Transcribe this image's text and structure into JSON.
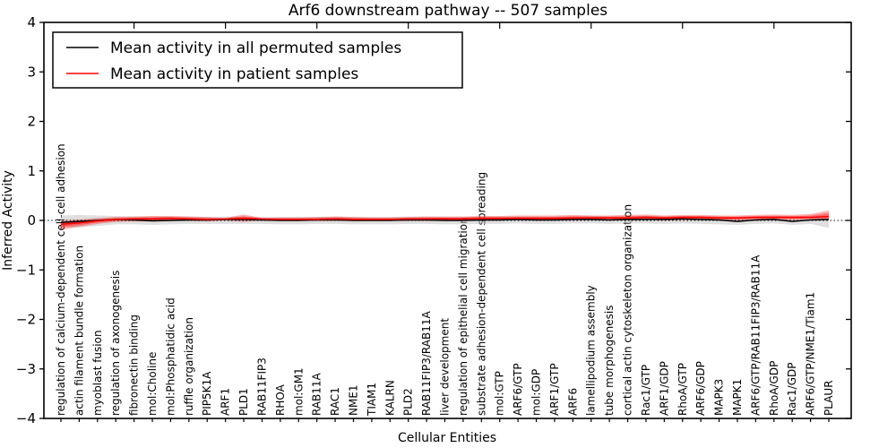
{
  "title": "Arf6 downstream pathway -- 507 samples",
  "axes": {
    "xlabel": "Cellular Entities",
    "ylabel": "Inferred Activity"
  },
  "legend": {
    "items": [
      {
        "label": "Mean activity in all permuted samples",
        "color": "#000000"
      },
      {
        "label": "Mean activity in patient samples",
        "color": "#ff0000"
      }
    ]
  },
  "colors": {
    "permuted_line": "#000000",
    "patient_line": "#ff0000",
    "permuted_band": "#bfbfbf",
    "patient_band": "#ff0000",
    "zero_line": "#000000",
    "spine": "#000000"
  },
  "chart_data": {
    "type": "line",
    "title": "Arf6 downstream pathway -- 507 samples",
    "xlabel": "Cellular Entities",
    "ylabel": "Inferred Activity",
    "ylim": [
      -4,
      4
    ],
    "yticks": [
      4,
      3,
      2,
      1,
      0,
      -1,
      -2,
      -3,
      -4
    ],
    "grid": false,
    "zero_line_style": "dotted",
    "legend_position": "upper left",
    "x_major_tick_indices": [
      4,
      9,
      14,
      19,
      24,
      29,
      34,
      39
    ],
    "categories": [
      "regulation of calcium-dependent cell-cell adhesion",
      "actin filament bundle formation",
      "myoblast fusion",
      "regulation of axonogenesis",
      "fibronectin binding",
      "mol:Choline",
      "mol:Phosphatidic acid",
      "ruffle organization",
      "PIP5K1A",
      "ARF1",
      "PLD1",
      "RAB11FIP3",
      "RHOA",
      "mol:GM1",
      "RAB11A",
      "RAC1",
      "NME1",
      "TIAM1",
      "KALRN",
      "PLD2",
      "RAB11FIP3/RAB11A",
      "liver development",
      "regulation of epithelial cell migration",
      "substrate adhesion-dependent cell spreading",
      "mol:GTP",
      "ARF6/GTP",
      "mol:GDP",
      "ARF1/GTP",
      "ARF6",
      "lamellipodium assembly",
      "tube morphogenesis",
      "cortical actin cytoskeleton organization",
      "Rac1/GTP",
      "ARF1/GDP",
      "RhoA/GTP",
      "ARF6/GDP",
      "MAPK3",
      "MAPK1",
      "ARF6/GTP/RAB11FIP3/RAB11A",
      "RhoA/GDP",
      "Rac1/GDP",
      "ARF6/GTP/NME1/Tiam1",
      "PLAUR"
    ],
    "series": [
      {
        "name": "Mean activity in all permuted samples",
        "color": "#000000",
        "band_color": "#bfbfbf",
        "values": [
          -0.04,
          -0.02,
          0.0,
          0.02,
          0.01,
          -0.01,
          0.0,
          0.01,
          0.01,
          0.02,
          0.02,
          0.01,
          0.0,
          0.0,
          0.01,
          0.01,
          0.0,
          0.0,
          0.0,
          0.01,
          0.01,
          0.0,
          0.0,
          0.01,
          0.01,
          0.02,
          0.01,
          0.01,
          0.02,
          0.02,
          0.01,
          0.02,
          0.02,
          0.02,
          0.03,
          0.02,
          0.01,
          -0.02,
          0.01,
          0.02,
          -0.02,
          0.01,
          0.02
        ],
        "band_upper": [
          0.1,
          0.11,
          0.1,
          0.09,
          0.08,
          0.08,
          0.08,
          0.08,
          0.07,
          0.08,
          0.08,
          0.07,
          0.07,
          0.07,
          0.07,
          0.08,
          0.07,
          0.07,
          0.07,
          0.08,
          0.08,
          0.07,
          0.07,
          0.08,
          0.08,
          0.08,
          0.08,
          0.08,
          0.08,
          0.09,
          0.08,
          0.08,
          0.09,
          0.08,
          0.09,
          0.08,
          0.08,
          0.07,
          0.08,
          0.08,
          0.07,
          0.08,
          0.07
        ],
        "band_lower": [
          -0.14,
          -0.14,
          -0.11,
          -0.08,
          -0.08,
          -0.09,
          -0.08,
          -0.07,
          -0.07,
          -0.07,
          -0.07,
          -0.07,
          -0.08,
          -0.08,
          -0.07,
          -0.07,
          -0.08,
          -0.08,
          -0.08,
          -0.07,
          -0.07,
          -0.08,
          -0.08,
          -0.07,
          -0.07,
          -0.06,
          -0.07,
          -0.07,
          -0.06,
          -0.06,
          -0.07,
          -0.06,
          -0.06,
          -0.07,
          -0.06,
          -0.07,
          -0.08,
          -0.09,
          -0.07,
          -0.06,
          -0.09,
          -0.07,
          -0.15
        ]
      },
      {
        "name": "Mean activity in patient samples",
        "color": "#ff0000",
        "band_color": "#ff0000",
        "values": [
          -0.08,
          -0.05,
          -0.01,
          0.02,
          0.03,
          0.03,
          0.04,
          0.03,
          0.02,
          0.03,
          0.04,
          0.03,
          0.02,
          0.02,
          0.02,
          0.03,
          0.02,
          0.02,
          0.02,
          0.03,
          0.03,
          0.03,
          0.03,
          0.04,
          0.04,
          0.04,
          0.04,
          0.04,
          0.05,
          0.05,
          0.05,
          0.05,
          0.06,
          0.05,
          0.06,
          0.06,
          0.05,
          0.05,
          0.06,
          0.06,
          0.06,
          0.06,
          0.08
        ],
        "band_upper": [
          0.0,
          0.02,
          0.05,
          0.07,
          0.08,
          0.09,
          0.09,
          0.08,
          0.07,
          0.05,
          0.12,
          0.05,
          0.06,
          0.06,
          0.07,
          0.08,
          0.07,
          0.06,
          0.06,
          0.07,
          0.08,
          0.08,
          0.08,
          0.09,
          0.09,
          0.1,
          0.1,
          0.1,
          0.11,
          0.1,
          0.1,
          0.11,
          0.12,
          0.1,
          0.11,
          0.11,
          0.1,
          0.1,
          0.11,
          0.12,
          0.11,
          0.13,
          0.2
        ],
        "band_lower": [
          -0.19,
          -0.13,
          -0.07,
          -0.03,
          -0.02,
          -0.02,
          -0.01,
          -0.01,
          -0.02,
          0.0,
          -0.03,
          0.0,
          -0.01,
          -0.01,
          -0.01,
          -0.01,
          -0.01,
          -0.01,
          -0.01,
          -0.01,
          -0.01,
          -0.01,
          -0.01,
          0.0,
          0.0,
          0.0,
          0.0,
          0.0,
          0.0,
          0.01,
          0.0,
          0.0,
          0.01,
          0.0,
          0.01,
          0.01,
          0.0,
          0.0,
          0.01,
          0.01,
          0.01,
          0.02,
          0.02
        ]
      }
    ]
  }
}
